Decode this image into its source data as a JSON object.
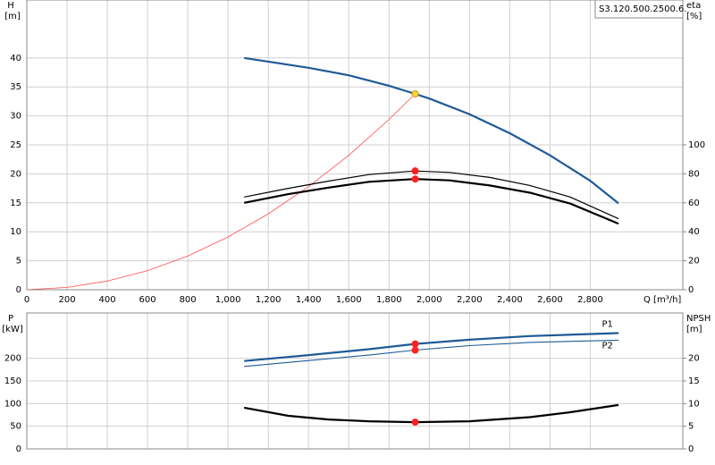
{
  "chart_data": [
    {
      "type": "line",
      "title": "S3.120.500.2500.6.",
      "y_label": "H",
      "y_unit": "[m]",
      "y2_label": "eta",
      "y2_unit": "[%]",
      "x_label": "Q [m³/h]",
      "xlim": [
        0,
        3260
      ],
      "ylim": [
        0,
        50
      ],
      "y2lim": [
        0,
        200
      ],
      "xticks": [
        0,
        200,
        400,
        600,
        800,
        {
          "value": 1000,
          "label": "1,000"
        },
        {
          "value": 1200,
          "label": "1,200"
        },
        {
          "value": 1400,
          "label": "1,400"
        },
        {
          "value": 1600,
          "label": "1,600"
        },
        {
          "value": 1800,
          "label": "1,800"
        },
        {
          "value": 2000,
          "label": "2,000"
        },
        {
          "value": 2200,
          "label": "2,200"
        },
        {
          "value": 2400,
          "label": "2,400"
        },
        {
          "value": 2600,
          "label": "2,600"
        },
        {
          "value": 2800,
          "label": "2,800"
        }
      ],
      "yticks": [
        0,
        5,
        10,
        15,
        20,
        25,
        30,
        35,
        40
      ],
      "y2ticks": [
        0,
        20,
        40,
        60,
        80,
        100
      ],
      "show_xtick_labels": true,
      "grid": true,
      "series": [
        {
          "color": "#1f5a96",
          "width": 2.2,
          "x": [
            1080,
            1400,
            1600,
            1800,
            1930,
            2000,
            2200,
            2400,
            2600,
            2800,
            2940
          ],
          "values": [
            40,
            38.3,
            37,
            35.2,
            33.8,
            33,
            30.3,
            27,
            23.2,
            18.8,
            14.9
          ]
        },
        {
          "color": "#ff4d4d",
          "width": 0.8,
          "x": [
            0,
            200,
            400,
            600,
            800,
            1000,
            1200,
            1400,
            1600,
            1800,
            1930
          ],
          "values": [
            0,
            0.4,
            1.5,
            3.3,
            5.8,
            9.1,
            13.1,
            17.8,
            23.2,
            29.4,
            33.8
          ]
        },
        {
          "color": "#000000",
          "width": 1.2,
          "axis": "y2",
          "x": [
            1080,
            1300,
            1500,
            1700,
            1930,
            2100,
            2300,
            2500,
            2700,
            2940
          ],
          "values": [
            64,
            70,
            75,
            79.5,
            82,
            81,
            77.5,
            72,
            64,
            49
          ]
        },
        {
          "color": "#000000",
          "width": 2.2,
          "axis": "y2",
          "x": [
            1080,
            1300,
            1500,
            1700,
            1930,
            2100,
            2300,
            2500,
            2700,
            2940
          ],
          "values": [
            60,
            66,
            70.5,
            74.5,
            76.4,
            75.5,
            72,
            67,
            59.5,
            45.6
          ]
        },
        {
          "type": "marker",
          "color": "#ffd633",
          "x": [
            1930
          ],
          "values": [
            33.8
          ]
        },
        {
          "type": "marker",
          "color": "#ff2020",
          "axis": "y2",
          "x": [
            1930
          ],
          "values": [
            82
          ]
        },
        {
          "type": "marker",
          "color": "#ff2020",
          "axis": "y2",
          "x": [
            1930
          ],
          "values": [
            76.4
          ]
        }
      ]
    },
    {
      "type": "line",
      "y_label": "P",
      "y_unit": "[kW]",
      "y2_label": "NPSH",
      "y2_unit": "[m]",
      "xlim": [
        0,
        3260
      ],
      "ylim": [
        0,
        300
      ],
      "y2lim": [
        0,
        30
      ],
      "xticks": [
        0,
        200,
        400,
        600,
        800,
        1000,
        1200,
        1400,
        1600,
        1800,
        2000,
        2200,
        2400,
        2600,
        2800
      ],
      "yticks": [
        0,
        50,
        100,
        150,
        200
      ],
      "y2ticks": [
        0,
        5,
        10,
        15,
        20
      ],
      "show_xtick_labels": false,
      "grid": true,
      "series": [
        {
          "name": "P1",
          "color": "#1f5a96",
          "width": 2.2,
          "x": [
            1080,
            1400,
            1700,
            1930,
            2200,
            2500,
            2940
          ],
          "values": [
            194,
            207,
            220,
            231.7,
            241,
            249,
            255.5
          ]
        },
        {
          "name": "P2",
          "color": "#1f5a96",
          "width": 1.1,
          "x": [
            1080,
            1400,
            1700,
            1930,
            2200,
            2500,
            2940
          ],
          "values": [
            182,
            195,
            207,
            218,
            228,
            235,
            240
          ]
        },
        {
          "color": "#000000",
          "width": 2.2,
          "axis": "y2",
          "x": [
            1080,
            1300,
            1500,
            1700,
            1930,
            2200,
            2500,
            2700,
            2940
          ],
          "values": [
            9.1,
            7.3,
            6.5,
            6.1,
            5.9,
            6.1,
            7,
            8.1,
            9.7
          ]
        },
        {
          "type": "marker",
          "color": "#ff2020",
          "x": [
            1930
          ],
          "values": [
            231.7
          ]
        },
        {
          "type": "marker",
          "color": "#ff2020",
          "x": [
            1930
          ],
          "values": [
            218
          ]
        },
        {
          "type": "marker",
          "color": "#ff2020",
          "axis": "y2",
          "x": [
            1930
          ],
          "values": [
            5.9
          ]
        }
      ]
    }
  ]
}
